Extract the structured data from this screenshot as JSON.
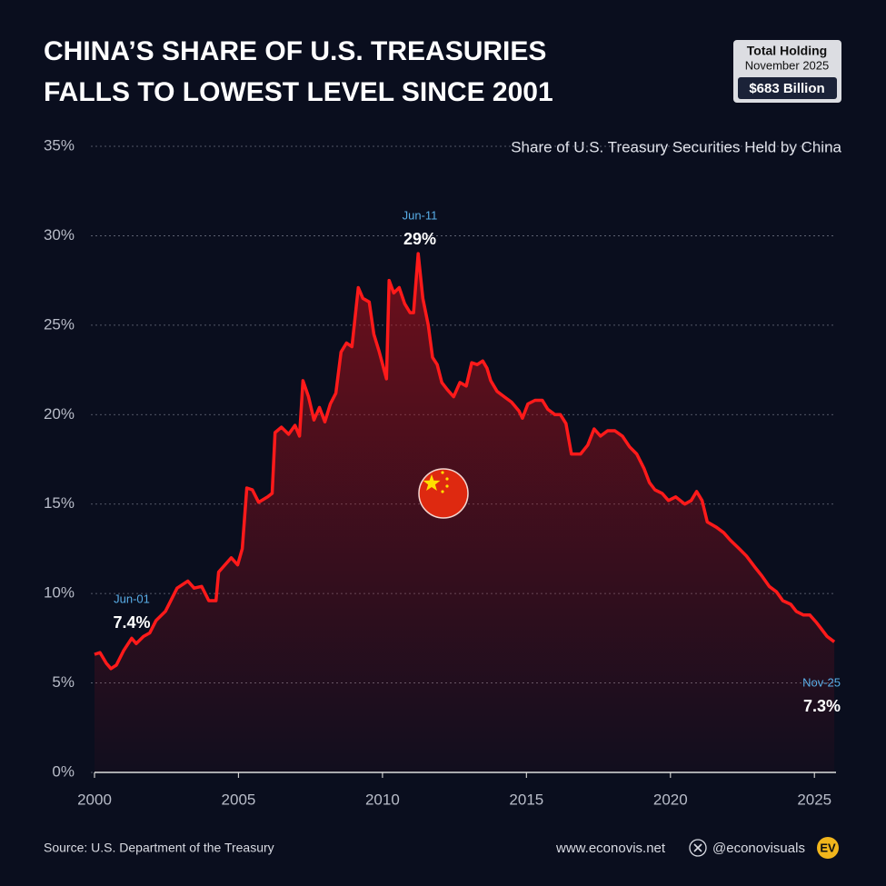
{
  "chart_data": {
    "type": "line",
    "title": [
      "CHINA’S SHARE OF U.S. TREASURIES",
      "FALLS TO LOWEST LEVEL SINCE 2001"
    ],
    "subtitle": "Share of U.S. Treasury Securities Held by China",
    "info_box": {
      "heading": "Total Holding",
      "date": "November 2025",
      "value": "$683 Billion"
    },
    "color": "#ff1a1a",
    "x": [
      2000.0,
      2000.19,
      2000.41,
      2000.57,
      2000.76,
      2001.01,
      2001.29,
      2001.45,
      2001.7,
      2001.92,
      2002.14,
      2002.46,
      2002.87,
      2003.24,
      2003.46,
      2003.72,
      2003.97,
      2004.22,
      2004.31,
      2004.75,
      2004.97,
      2005.13,
      2005.29,
      2005.48,
      2005.7,
      2006.01,
      2006.17,
      2006.27,
      2006.49,
      2006.74,
      2006.96,
      2007.12,
      2007.24,
      2007.43,
      2007.62,
      2007.81,
      2008.0,
      2008.19,
      2008.38,
      2008.56,
      2008.75,
      2008.94,
      2009.16,
      2009.32,
      2009.54,
      2009.7,
      2009.89,
      2010.14,
      2010.23,
      2010.39,
      2010.58,
      2010.77,
      2010.96,
      2011.08,
      2011.24,
      2011.4,
      2011.59,
      2011.74,
      2011.9,
      2012.06,
      2012.25,
      2012.47,
      2012.69,
      2012.91,
      2013.1,
      2013.29,
      2013.48,
      2013.63,
      2013.76,
      2013.98,
      2014.23,
      2014.48,
      2014.74,
      2014.86,
      2015.05,
      2015.3,
      2015.55,
      2015.74,
      2015.99,
      2016.18,
      2016.37,
      2016.56,
      2016.88,
      2017.13,
      2017.35,
      2017.57,
      2017.82,
      2018.07,
      2018.33,
      2018.58,
      2018.83,
      2019.08,
      2019.27,
      2019.46,
      2019.71,
      2019.93,
      2020.18,
      2020.5,
      2020.72,
      2020.91,
      2021.1,
      2021.28,
      2021.6,
      2021.85,
      2022.07,
      2022.39,
      2022.64,
      2022.92,
      2023.17,
      2023.43,
      2023.68,
      2023.9,
      2024.18,
      2024.37,
      2024.62,
      2024.84,
      2025.06,
      2025.25,
      2025.44,
      2025.69
    ],
    "values": [
      6.6,
      6.7,
      6.1,
      5.8,
      6.0,
      6.8,
      7.5,
      7.2,
      7.6,
      7.8,
      8.5,
      9.0,
      10.3,
      10.7,
      10.3,
      10.4,
      9.6,
      9.6,
      11.2,
      12.0,
      11.6,
      12.5,
      15.9,
      15.8,
      15.1,
      15.4,
      15.6,
      19.0,
      19.3,
      18.9,
      19.4,
      18.8,
      21.9,
      21.0,
      19.7,
      20.4,
      19.6,
      20.6,
      21.2,
      23.5,
      24.0,
      23.8,
      27.1,
      26.5,
      26.3,
      24.5,
      23.5,
      22.0,
      27.5,
      26.8,
      27.1,
      26.2,
      25.7,
      25.7,
      29.0,
      26.5,
      25.0,
      23.2,
      22.8,
      21.8,
      21.4,
      21.0,
      21.8,
      21.6,
      22.9,
      22.8,
      23.0,
      22.6,
      21.9,
      21.3,
      21.0,
      20.7,
      20.2,
      19.8,
      20.6,
      20.8,
      20.8,
      20.3,
      20.0,
      20.0,
      19.5,
      17.8,
      17.8,
      18.3,
      19.2,
      18.8,
      19.1,
      19.1,
      18.8,
      18.2,
      17.8,
      17.0,
      16.2,
      15.8,
      15.6,
      15.2,
      15.4,
      15.0,
      15.2,
      15.7,
      15.2,
      14.0,
      13.7,
      13.4,
      13.0,
      12.5,
      12.1,
      11.5,
      11.0,
      10.4,
      10.1,
      9.6,
      9.4,
      9.0,
      8.8,
      8.8,
      8.4,
      8.0,
      7.6,
      7.3
    ],
    "xlim": [
      2000,
      2025.75
    ],
    "xticks": [
      2000,
      2005,
      2010,
      2015,
      2020,
      2025
    ],
    "ylim": [
      0,
      35
    ],
    "yticks": [
      {
        "value": 0,
        "label": "0%"
      },
      {
        "value": 5,
        "label": "5%"
      },
      {
        "value": 10,
        "label": "10%"
      },
      {
        "value": 15,
        "label": "15%"
      },
      {
        "value": 20,
        "label": "20%"
      },
      {
        "value": 25,
        "label": "25%"
      },
      {
        "value": 30,
        "label": "30%"
      },
      {
        "value": 35,
        "label": "35%"
      }
    ],
    "grid": true,
    "annotations": [
      {
        "date": "Jun-01",
        "text": "7.4%"
      },
      {
        "date": "Jun-11",
        "text": "29%"
      },
      {
        "date": "Nov-25",
        "text": "7.3%"
      }
    ]
  },
  "footer": {
    "source": "Source: U.S. Department of the Treasury",
    "website": "www.econovis.net",
    "handle": "@econovisuals",
    "logo": "EV"
  }
}
